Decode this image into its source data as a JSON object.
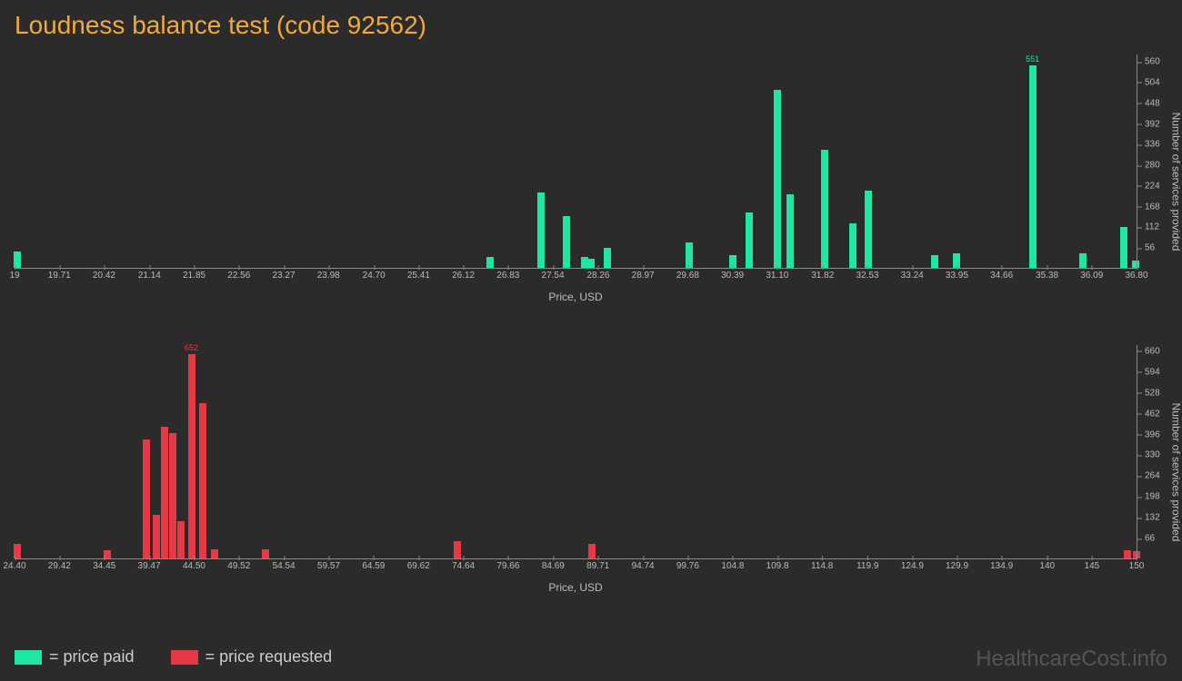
{
  "title": "Loudness balance test (code 92562)",
  "legend": {
    "paid": "= price paid",
    "requested": "= price requested"
  },
  "watermark": "HealthcareCost.info",
  "colors": {
    "background": "#2b2b2b",
    "title": "#f2a93b",
    "axis": "#888888",
    "tick_text": "#bbbbbb",
    "paid": "#1ee6a5",
    "requested": "#e63946",
    "watermark": "#555555"
  },
  "chart_paid": {
    "type": "bar",
    "xlabel": "Price, USD",
    "ylabel": "Number of services provided",
    "xlim": [
      19,
      36.8
    ],
    "ylim": [
      0,
      580
    ],
    "xticks": [
      "19",
      "19.71",
      "20.42",
      "21.14",
      "21.85",
      "22.56",
      "23.27",
      "23.98",
      "24.70",
      "25.41",
      "26.12",
      "26.83",
      "27.54",
      "28.26",
      "28.97",
      "29.68",
      "30.39",
      "31.10",
      "31.82",
      "32.53",
      "33.24",
      "33.95",
      "34.66",
      "35.38",
      "36.09",
      "36.80"
    ],
    "yticks": [
      56,
      112,
      168,
      224,
      280,
      336,
      392,
      448,
      504,
      560
    ],
    "bar_color": "#1ee6a5",
    "max_label": "551",
    "bars": [
      {
        "x": 19.05,
        "y": 45
      },
      {
        "x": 26.55,
        "y": 30
      },
      {
        "x": 27.35,
        "y": 205
      },
      {
        "x": 27.75,
        "y": 140
      },
      {
        "x": 28.05,
        "y": 30
      },
      {
        "x": 28.15,
        "y": 25
      },
      {
        "x": 28.4,
        "y": 55
      },
      {
        "x": 29.7,
        "y": 70
      },
      {
        "x": 30.4,
        "y": 35
      },
      {
        "x": 30.65,
        "y": 150
      },
      {
        "x": 31.1,
        "y": 485
      },
      {
        "x": 31.3,
        "y": 200
      },
      {
        "x": 31.85,
        "y": 320
      },
      {
        "x": 32.3,
        "y": 120
      },
      {
        "x": 32.55,
        "y": 210
      },
      {
        "x": 33.6,
        "y": 35
      },
      {
        "x": 33.95,
        "y": 40
      },
      {
        "x": 35.15,
        "y": 551,
        "label": "551"
      },
      {
        "x": 35.95,
        "y": 40
      },
      {
        "x": 36.6,
        "y": 110
      },
      {
        "x": 36.78,
        "y": 20
      }
    ]
  },
  "chart_requested": {
    "type": "bar",
    "xlabel": "Price, USD",
    "ylabel": "Number of services provided",
    "xlim": [
      24.4,
      150
    ],
    "ylim": [
      0,
      680
    ],
    "xticks": [
      "24.40",
      "29.42",
      "34.45",
      "39.47",
      "44.50",
      "49.52",
      "54.54",
      "59.57",
      "64.59",
      "69.62",
      "74.64",
      "79.66",
      "84.69",
      "89.71",
      "94.74",
      "99.76",
      "104.8",
      "109.8",
      "114.8",
      "119.9",
      "124.9",
      "129.9",
      "134.9",
      "140",
      "145",
      "150"
    ],
    "yticks": [
      66,
      132,
      198,
      264,
      330,
      396,
      462,
      528,
      594,
      660
    ],
    "bar_color": "#e63946",
    "max_label": "652",
    "bars": [
      {
        "x": 24.7,
        "y": 45
      },
      {
        "x": 34.8,
        "y": 25
      },
      {
        "x": 39.2,
        "y": 380
      },
      {
        "x": 40.3,
        "y": 140
      },
      {
        "x": 41.2,
        "y": 420
      },
      {
        "x": 42.1,
        "y": 400
      },
      {
        "x": 43.0,
        "y": 120
      },
      {
        "x": 44.2,
        "y": 652,
        "label": "652"
      },
      {
        "x": 45.5,
        "y": 495
      },
      {
        "x": 46.8,
        "y": 30
      },
      {
        "x": 52.5,
        "y": 30
      },
      {
        "x": 74.0,
        "y": 55
      },
      {
        "x": 89.0,
        "y": 45
      },
      {
        "x": 149.0,
        "y": 25
      },
      {
        "x": 150.0,
        "y": 22
      }
    ]
  }
}
